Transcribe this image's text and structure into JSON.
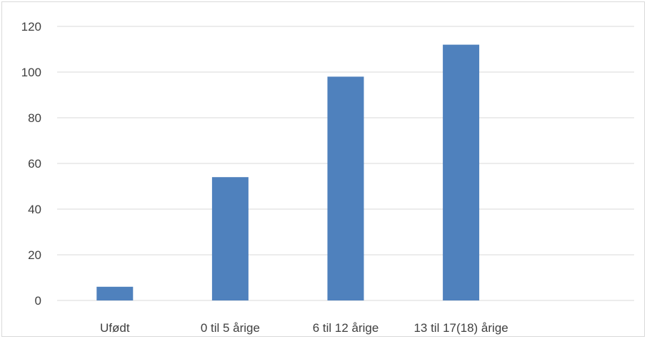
{
  "chart_data": {
    "type": "bar",
    "categories": [
      "Ufødt",
      "0 til 5 årige",
      "6 til 12 årige",
      "13 til 17(18) årige",
      ""
    ],
    "values": [
      6,
      54,
      98,
      112,
      null
    ],
    "title": "",
    "xlabel": "",
    "ylabel": "",
    "ylim": [
      0,
      120
    ],
    "yticks": [
      "0",
      "20",
      "40",
      "60",
      "80",
      "100",
      "120"
    ],
    "grid": true,
    "legend": "none",
    "bar_color": "#4f81bd",
    "grid_color": "#d9d9d9",
    "text_color": "#404040"
  }
}
